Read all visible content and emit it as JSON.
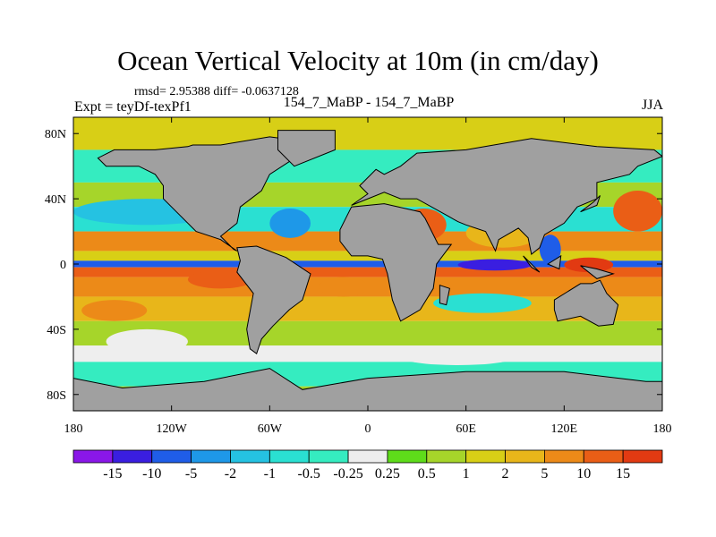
{
  "chart_data": {
    "type": "heatmap",
    "title": "Ocean Vertical Velocity at 10m (in cm/day)",
    "stats": "rmsd= 2.95388 diff= -0.0637128",
    "expt": "Expt = teyDf-texPf1",
    "case": "154_7_MaBP - 154_7_MaBP",
    "season": "JJA",
    "x_ticks": [
      {
        "lon": -180,
        "label": "180"
      },
      {
        "lon": -120,
        "label": "120W"
      },
      {
        "lon": -60,
        "label": "60W"
      },
      {
        "lon": 0,
        "label": "0"
      },
      {
        "lon": 60,
        "label": "60E"
      },
      {
        "lon": 120,
        "label": "120E"
      },
      {
        "lon": 180,
        "label": "180"
      }
    ],
    "y_ticks": [
      {
        "lat": 80,
        "label": "80N"
      },
      {
        "lat": 40,
        "label": "40N"
      },
      {
        "lat": 0,
        "label": "0"
      },
      {
        "lat": -40,
        "label": "40S"
      },
      {
        "lat": -80,
        "label": "80S"
      }
    ],
    "xlim": [
      -180,
      180
    ],
    "ylim": [
      -90,
      90
    ],
    "colorbar": {
      "labels": [
        "-15",
        "-10",
        "-5",
        "-2",
        "-1",
        "-0.5",
        "-0.25",
        "0.25",
        "0.5",
        "1",
        "2",
        "5",
        "10",
        "15"
      ],
      "colors": [
        "#8a17e8",
        "#3a1ee0",
        "#1f5de8",
        "#1e98e8",
        "#25c2e2",
        "#2ae0d2",
        "#35ecc0",
        "#eeeeee",
        "#5edc1a",
        "#a6d52a",
        "#d8cf16",
        "#e8b61a",
        "#ec8a18",
        "#ea5e16",
        "#e23a12"
      ]
    },
    "land_color": "#a0a0a0",
    "bands": [
      {
        "lat_min": 70,
        "lat_max": 90,
        "value": 1
      },
      {
        "lat_min": 50,
        "lat_max": 70,
        "value": -0.5
      },
      {
        "lat_min": 35,
        "lat_max": 50,
        "value": 0.5
      },
      {
        "lat_min": 20,
        "lat_max": 35,
        "value": -1
      },
      {
        "lat_min": 8,
        "lat_max": 20,
        "value": 5
      },
      {
        "lat_min": 2,
        "lat_max": 8,
        "value": 1
      },
      {
        "lat_min": -2,
        "lat_max": 2,
        "value": -10
      },
      {
        "lat_min": -8,
        "lat_max": -2,
        "value": 10
      },
      {
        "lat_min": -20,
        "lat_max": -8,
        "value": 5
      },
      {
        "lat_min": -35,
        "lat_max": -20,
        "value": 2
      },
      {
        "lat_min": -50,
        "lat_max": -35,
        "value": 0.5
      },
      {
        "lat_min": -60,
        "lat_max": -50,
        "value": 0
      },
      {
        "lat_min": -75,
        "lat_max": -60,
        "value": -0.5
      },
      {
        "lat_min": -90,
        "lat_max": -75,
        "value": 0.5
      }
    ],
    "features": [
      {
        "lon_min": -180,
        "lon_max": -90,
        "lat_min": 24,
        "lat_max": 40,
        "value": -2
      },
      {
        "lon_min": -160,
        "lon_max": -110,
        "lat_min": -55,
        "lat_max": -40,
        "value": 0
      },
      {
        "lon_min": -175,
        "lon_max": -135,
        "lat_min": -35,
        "lat_max": -22,
        "value": 5
      },
      {
        "lon_min": -60,
        "lon_max": -35,
        "lat_min": 16,
        "lat_max": 34,
        "value": -5
      },
      {
        "lon_min": 20,
        "lon_max": 48,
        "lat_min": 14,
        "lat_max": 34,
        "value": 10
      },
      {
        "lon_min": 60,
        "lon_max": 105,
        "lat_min": 10,
        "lat_max": 28,
        "value": 2
      },
      {
        "lon_min": 55,
        "lon_max": 100,
        "lat_min": -4,
        "lat_max": 3,
        "value": -15
      },
      {
        "lon_min": 105,
        "lon_max": 118,
        "lat_min": 0,
        "lat_max": 18,
        "value": -10
      },
      {
        "lon_min": 120,
        "lon_max": 150,
        "lat_min": -5,
        "lat_max": 4,
        "value": 15
      },
      {
        "lon_min": 150,
        "lon_max": 180,
        "lat_min": 20,
        "lat_max": 45,
        "value": 10
      },
      {
        "lon_min": 40,
        "lon_max": 100,
        "lat_min": -30,
        "lat_max": -18,
        "value": -1
      },
      {
        "lon_min": 20,
        "lon_max": 90,
        "lat_min": -62,
        "lat_max": -52,
        "value": 0
      },
      {
        "lon_min": -30,
        "lon_max": 0,
        "lat_min": -20,
        "lat_max": -8,
        "value": 5
      },
      {
        "lon_min": -110,
        "lon_max": -70,
        "lat_min": -15,
        "lat_max": -4,
        "value": 10
      }
    ],
    "land": [
      [
        [
          -107,
          73
        ],
        [
          -90,
          73
        ],
        [
          -60,
          78
        ],
        [
          -30,
          74
        ],
        [
          -20,
          75
        ],
        [
          -40,
          68
        ],
        [
          -60,
          55
        ],
        [
          -65,
          45
        ],
        [
          -78,
          35
        ],
        [
          -80,
          25
        ],
        [
          -90,
          17
        ],
        [
          -82,
          9
        ],
        [
          -80,
          8
        ],
        [
          -90,
          15
        ],
        [
          -105,
          20
        ],
        [
          -115,
          30
        ],
        [
          -125,
          40
        ],
        [
          -125,
          48
        ],
        [
          -130,
          55
        ],
        [
          -140,
          60
        ],
        [
          -160,
          60
        ],
        [
          -165,
          65
        ],
        [
          -155,
          70
        ],
        [
          -130,
          70
        ],
        [
          -110,
          72
        ]
      ],
      [
        [
          -80,
          10
        ],
        [
          -68,
          11
        ],
        [
          -50,
          4
        ],
        [
          -35,
          -6
        ],
        [
          -40,
          -22
        ],
        [
          -48,
          -28
        ],
        [
          -58,
          -38
        ],
        [
          -65,
          -46
        ],
        [
          -68,
          -55
        ],
        [
          -72,
          -52
        ],
        [
          -74,
          -40
        ],
        [
          -70,
          -18
        ],
        [
          -80,
          -5
        ],
        [
          -78,
          2
        ]
      ],
      [
        [
          -17,
          21
        ],
        [
          -10,
          35
        ],
        [
          10,
          37
        ],
        [
          32,
          32
        ],
        [
          35,
          28
        ],
        [
          43,
          12
        ],
        [
          51,
          12
        ],
        [
          42,
          0
        ],
        [
          40,
          -15
        ],
        [
          32,
          -28
        ],
        [
          20,
          -35
        ],
        [
          15,
          -22
        ],
        [
          12,
          -6
        ],
        [
          9,
          3
        ],
        [
          0,
          5
        ],
        [
          -10,
          5
        ],
        [
          -17,
          14
        ]
      ],
      [
        [
          -10,
          36
        ],
        [
          0,
          43
        ],
        [
          -5,
          48
        ],
        [
          5,
          58
        ],
        [
          10,
          55
        ],
        [
          20,
          60
        ],
        [
          30,
          68
        ],
        [
          60,
          70
        ],
        [
          100,
          77
        ],
        [
          140,
          72
        ],
        [
          175,
          70
        ],
        [
          180,
          66
        ],
        [
          165,
          60
        ],
        [
          160,
          55
        ],
        [
          140,
          50
        ],
        [
          140,
          40
        ],
        [
          128,
          35
        ],
        [
          120,
          25
        ],
        [
          108,
          18
        ],
        [
          105,
          10
        ],
        [
          100,
          6
        ],
        [
          98,
          16
        ],
        [
          92,
          22
        ],
        [
          80,
          15
        ],
        [
          78,
          8
        ],
        [
          72,
          20
        ],
        [
          60,
          24
        ],
        [
          55,
          26
        ],
        [
          48,
          30
        ],
        [
          30,
          40
        ],
        [
          25,
          40
        ],
        [
          20,
          40
        ],
        [
          10,
          44
        ],
        [
          0,
          40
        ]
      ],
      [
        [
          114,
          -22
        ],
        [
          122,
          -17
        ],
        [
          130,
          -12
        ],
        [
          137,
          -12
        ],
        [
          142,
          -10
        ],
        [
          146,
          -18
        ],
        [
          153,
          -25
        ],
        [
          150,
          -37
        ],
        [
          141,
          -38
        ],
        [
          130,
          -32
        ],
        [
          116,
          -35
        ],
        [
          114,
          -28
        ]
      ],
      [
        [
          -180,
          -70
        ],
        [
          -150,
          -76
        ],
        [
          -100,
          -72
        ],
        [
          -60,
          -64
        ],
        [
          -40,
          -77
        ],
        [
          0,
          -70
        ],
        [
          60,
          -66
        ],
        [
          120,
          -66
        ],
        [
          170,
          -72
        ],
        [
          180,
          -72
        ],
        [
          180,
          -90
        ],
        [
          -180,
          -90
        ]
      ],
      [
        [
          -55,
          82
        ],
        [
          -20,
          82
        ],
        [
          -20,
          70
        ],
        [
          -45,
          60
        ],
        [
          -55,
          70
        ]
      ],
      [
        [
          44,
          -13
        ],
        [
          50,
          -15
        ],
        [
          48,
          -25
        ],
        [
          44,
          -24
        ]
      ],
      [
        [
          95,
          5
        ],
        [
          105,
          -5
        ],
        [
          100,
          -2
        ]
      ],
      [
        [
          110,
          0
        ],
        [
          118,
          5
        ],
        [
          117,
          -3
        ]
      ],
      [
        [
          130,
          -1
        ],
        [
          140,
          -3
        ],
        [
          150,
          -6
        ],
        [
          140,
          -9
        ]
      ],
      [
        [
          130,
          32
        ],
        [
          140,
          36
        ],
        [
          142,
          42
        ],
        [
          138,
          38
        ]
      ]
    ]
  }
}
